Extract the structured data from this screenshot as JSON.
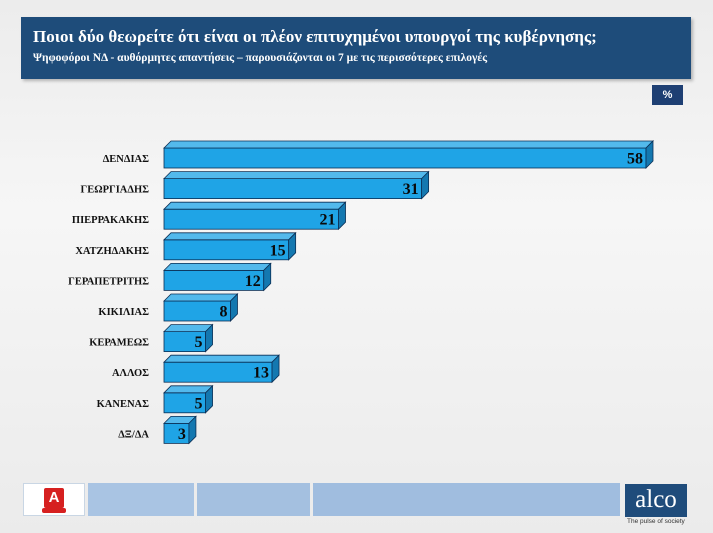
{
  "header": {
    "title": "Ποιοι δύο θεωρείτε ότι είναι οι πλέον επιτυχημένοι υπουργοί της κυβέρνησης;",
    "subtitle": "Ψηφοφόροι ΝΔ  - αυθόρμητες απαντήσεις – παρουσιάζονται οι 7 με τις περισσότερες επιλογές"
  },
  "unit_badge": "%",
  "chart_data": {
    "type": "bar",
    "orientation": "horizontal",
    "categories": [
      "ΔΕΝΔΙΑΣ",
      "ΓΕΩΡΓΙΑΔΗΣ",
      "ΠΙΕΡΡΑΚΑΚΗΣ",
      "ΧΑΤΖΗΔΑΚΗΣ",
      "ΓΕΡΑΠΕΤΡΙΤΗΣ",
      "ΚΙΚΙΛΙΑΣ",
      "ΚΕΡΑΜΕΩΣ",
      "ΑΛΛΟΣ",
      "ΚΑΝΕΝΑΣ",
      "ΔΞ/ΔΑ"
    ],
    "values": [
      58,
      31,
      21,
      15,
      12,
      8,
      5,
      13,
      5,
      3
    ],
    "title": "",
    "xlabel": "",
    "ylabel": "",
    "xlim": [
      0,
      58
    ],
    "grid": false,
    "legend": "none",
    "bar_color": "#1fa4e6",
    "bar_top_color": "#53b9ec",
    "bar_side_color": "#1478b0"
  },
  "footer": {
    "logo_letter": "Α",
    "brand": "alco",
    "tagline": "The pulse of society"
  },
  "colors": {
    "header_bg": "#1e4c7a",
    "footer_segment": "#a7c3e2"
  }
}
